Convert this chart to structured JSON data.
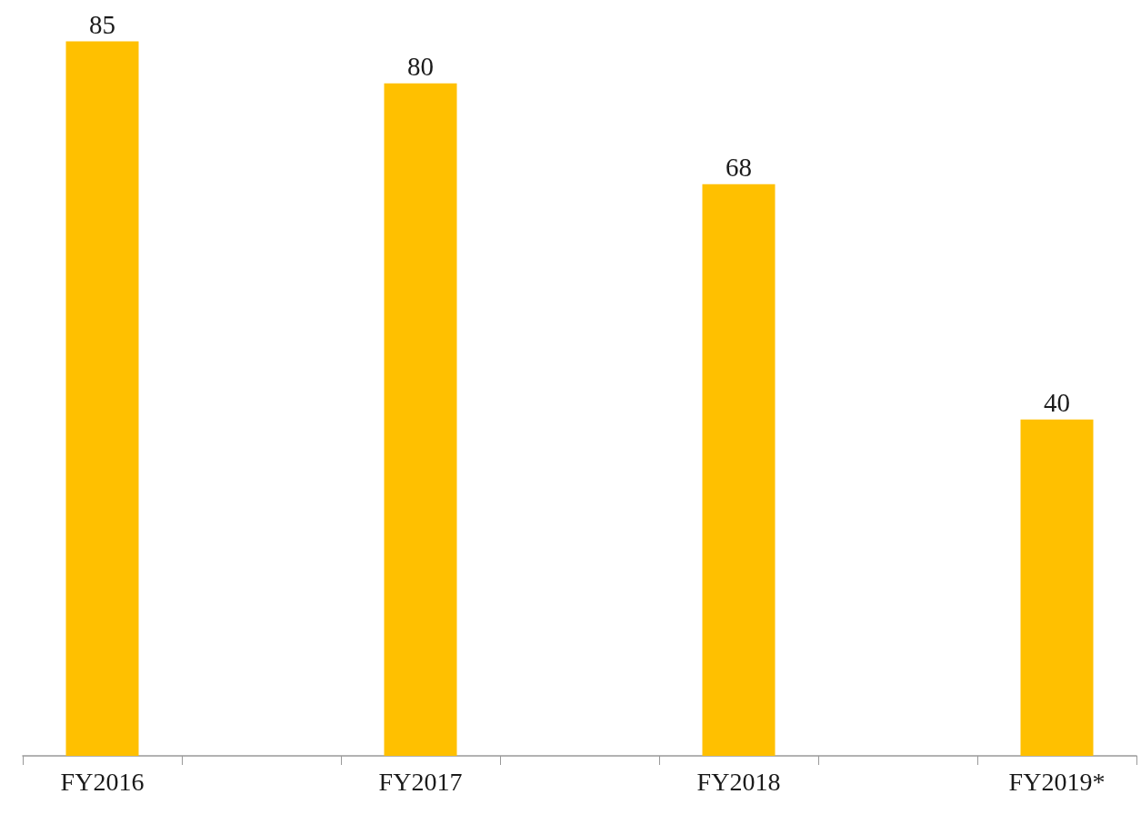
{
  "chart_data": {
    "type": "bar",
    "categories": [
      "FY2016",
      null,
      "FY2017",
      null,
      "FY2018",
      null,
      "FY2019*"
    ],
    "values": [
      85,
      null,
      80,
      null,
      68,
      null,
      40
    ],
    "color": "#ffc000",
    "data_labels": true,
    "tick_labels": "x"
  }
}
